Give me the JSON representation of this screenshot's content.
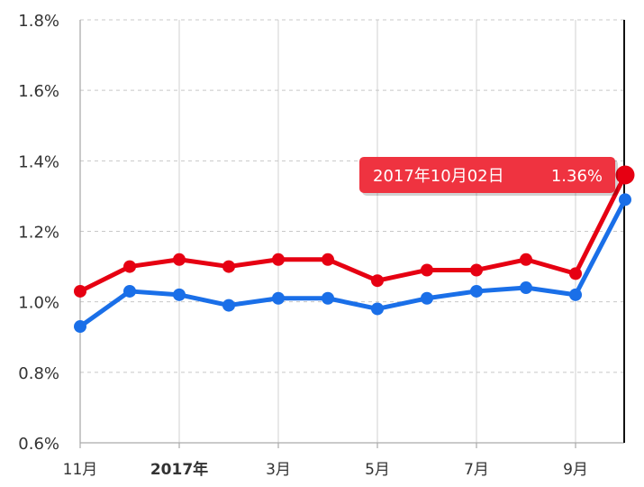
{
  "chart_data": {
    "type": "line",
    "title": "",
    "xlabel": "",
    "ylabel": "",
    "y_unit": "%",
    "ylim": [
      0.6,
      1.8
    ],
    "y_ticks": [
      "0.6%",
      "0.8%",
      "1.0%",
      "1.2%",
      "1.4%",
      "1.6%",
      "1.8%"
    ],
    "x": [
      "2016-11",
      "2016-12",
      "2017-01",
      "2017-02",
      "2017-03",
      "2017-04",
      "2017-05",
      "2017-06",
      "2017-07",
      "2017-08",
      "2017-09",
      "2017-10-02"
    ],
    "x_tick_labels": [
      {
        "label": "11月",
        "bold": false
      },
      {
        "label": "2017年",
        "bold": true
      },
      {
        "label": "3月",
        "bold": false
      },
      {
        "label": "5月",
        "bold": false
      },
      {
        "label": "7月",
        "bold": false
      },
      {
        "label": "9月",
        "bold": false
      }
    ],
    "grid": true,
    "series": [
      {
        "color": "#e60012",
        "values": [
          1.03,
          1.1,
          1.12,
          1.1,
          1.12,
          1.12,
          1.06,
          1.09,
          1.09,
          1.12,
          1.08,
          1.36
        ]
      },
      {
        "color": "#1a6fe8",
        "values": [
          0.93,
          1.03,
          1.02,
          0.99,
          1.01,
          1.01,
          0.98,
          1.01,
          1.03,
          1.04,
          1.02,
          1.29
        ]
      }
    ],
    "tooltip": {
      "date": "2017年10月02日",
      "value": "1.36%",
      "color": "#ef3340"
    }
  }
}
